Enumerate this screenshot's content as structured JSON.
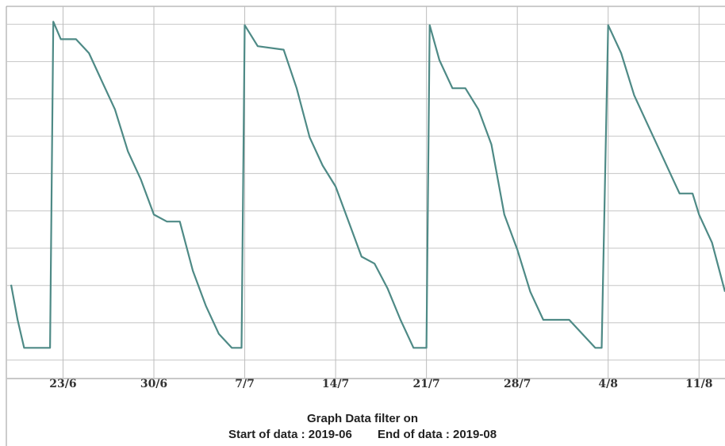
{
  "chart_data": {
    "type": "line",
    "x_unit": "date (day/month, 2019)",
    "x_tick_labels": [
      "23/6",
      "30/6",
      "7/7",
      "14/7",
      "21/7",
      "28/7",
      "4/8",
      "11/8"
    ],
    "xlim": [
      "2019-06-19",
      "2019-08-13"
    ],
    "ylim": [
      0,
      100
    ],
    "y_tick_labels": [],
    "grid": true,
    "line_color": "#4e8a86",
    "series": [
      {
        "values": [
          {
            "x": "2019-06-19",
            "y": 22
          },
          {
            "x": "2019-06-19T12:00",
            "y": 12
          },
          {
            "x": "2019-06-20",
            "y": 4
          },
          {
            "x": "2019-06-21",
            "y": 4
          },
          {
            "x": "2019-06-22",
            "y": 4
          },
          {
            "x": "2019-06-22T06:00",
            "y": 97
          },
          {
            "x": "2019-06-22T20:00",
            "y": 92
          },
          {
            "x": "2019-06-24",
            "y": 92
          },
          {
            "x": "2019-06-25",
            "y": 88
          },
          {
            "x": "2019-06-26",
            "y": 80
          },
          {
            "x": "2019-06-27",
            "y": 72
          },
          {
            "x": "2019-06-28",
            "y": 60
          },
          {
            "x": "2019-06-29",
            "y": 52
          },
          {
            "x": "2019-06-30",
            "y": 42
          },
          {
            "x": "2019-07-01",
            "y": 40
          },
          {
            "x": "2019-07-02",
            "y": 40
          },
          {
            "x": "2019-07-03",
            "y": 26
          },
          {
            "x": "2019-07-04",
            "y": 16
          },
          {
            "x": "2019-07-05",
            "y": 8
          },
          {
            "x": "2019-07-06",
            "y": 4
          },
          {
            "x": "2019-07-06T18:00",
            "y": 4
          },
          {
            "x": "2019-07-07",
            "y": 96
          },
          {
            "x": "2019-07-08",
            "y": 90
          },
          {
            "x": "2019-07-10",
            "y": 89
          },
          {
            "x": "2019-07-11",
            "y": 78
          },
          {
            "x": "2019-07-12",
            "y": 64
          },
          {
            "x": "2019-07-13",
            "y": 56
          },
          {
            "x": "2019-07-14",
            "y": 50
          },
          {
            "x": "2019-07-15",
            "y": 40
          },
          {
            "x": "2019-07-16",
            "y": 30
          },
          {
            "x": "2019-07-17",
            "y": 28
          },
          {
            "x": "2019-07-18",
            "y": 21
          },
          {
            "x": "2019-07-19",
            "y": 12
          },
          {
            "x": "2019-07-20",
            "y": 4
          },
          {
            "x": "2019-07-21",
            "y": 4
          },
          {
            "x": "2019-07-21T06:00",
            "y": 96
          },
          {
            "x": "2019-07-22",
            "y": 86
          },
          {
            "x": "2019-07-23",
            "y": 78
          },
          {
            "x": "2019-07-24",
            "y": 78
          },
          {
            "x": "2019-07-25",
            "y": 72
          },
          {
            "x": "2019-07-26",
            "y": 62
          },
          {
            "x": "2019-07-27",
            "y": 42
          },
          {
            "x": "2019-07-28",
            "y": 32
          },
          {
            "x": "2019-07-29",
            "y": 20
          },
          {
            "x": "2019-07-30",
            "y": 12
          },
          {
            "x": "2019-07-31",
            "y": 12
          },
          {
            "x": "2019-08-01",
            "y": 12
          },
          {
            "x": "2019-08-02",
            "y": 8
          },
          {
            "x": "2019-08-03",
            "y": 4
          },
          {
            "x": "2019-08-03T12:00",
            "y": 4
          },
          {
            "x": "2019-08-04",
            "y": 96
          },
          {
            "x": "2019-08-05",
            "y": 88
          },
          {
            "x": "2019-08-06",
            "y": 76
          },
          {
            "x": "2019-08-07",
            "y": 68
          },
          {
            "x": "2019-08-08",
            "y": 60
          },
          {
            "x": "2019-08-09",
            "y": 52
          },
          {
            "x": "2019-08-09T12:00",
            "y": 48
          },
          {
            "x": "2019-08-10",
            "y": 48
          },
          {
            "x": "2019-08-10T12:00",
            "y": 48
          },
          {
            "x": "2019-08-11",
            "y": 42
          },
          {
            "x": "2019-08-12",
            "y": 34
          },
          {
            "x": "2019-08-13",
            "y": 20
          }
        ]
      }
    ]
  },
  "footer": {
    "title": "Graph Data filter on",
    "start": "Start of data : 2019-06",
    "end": "End of data : 2019-08"
  }
}
